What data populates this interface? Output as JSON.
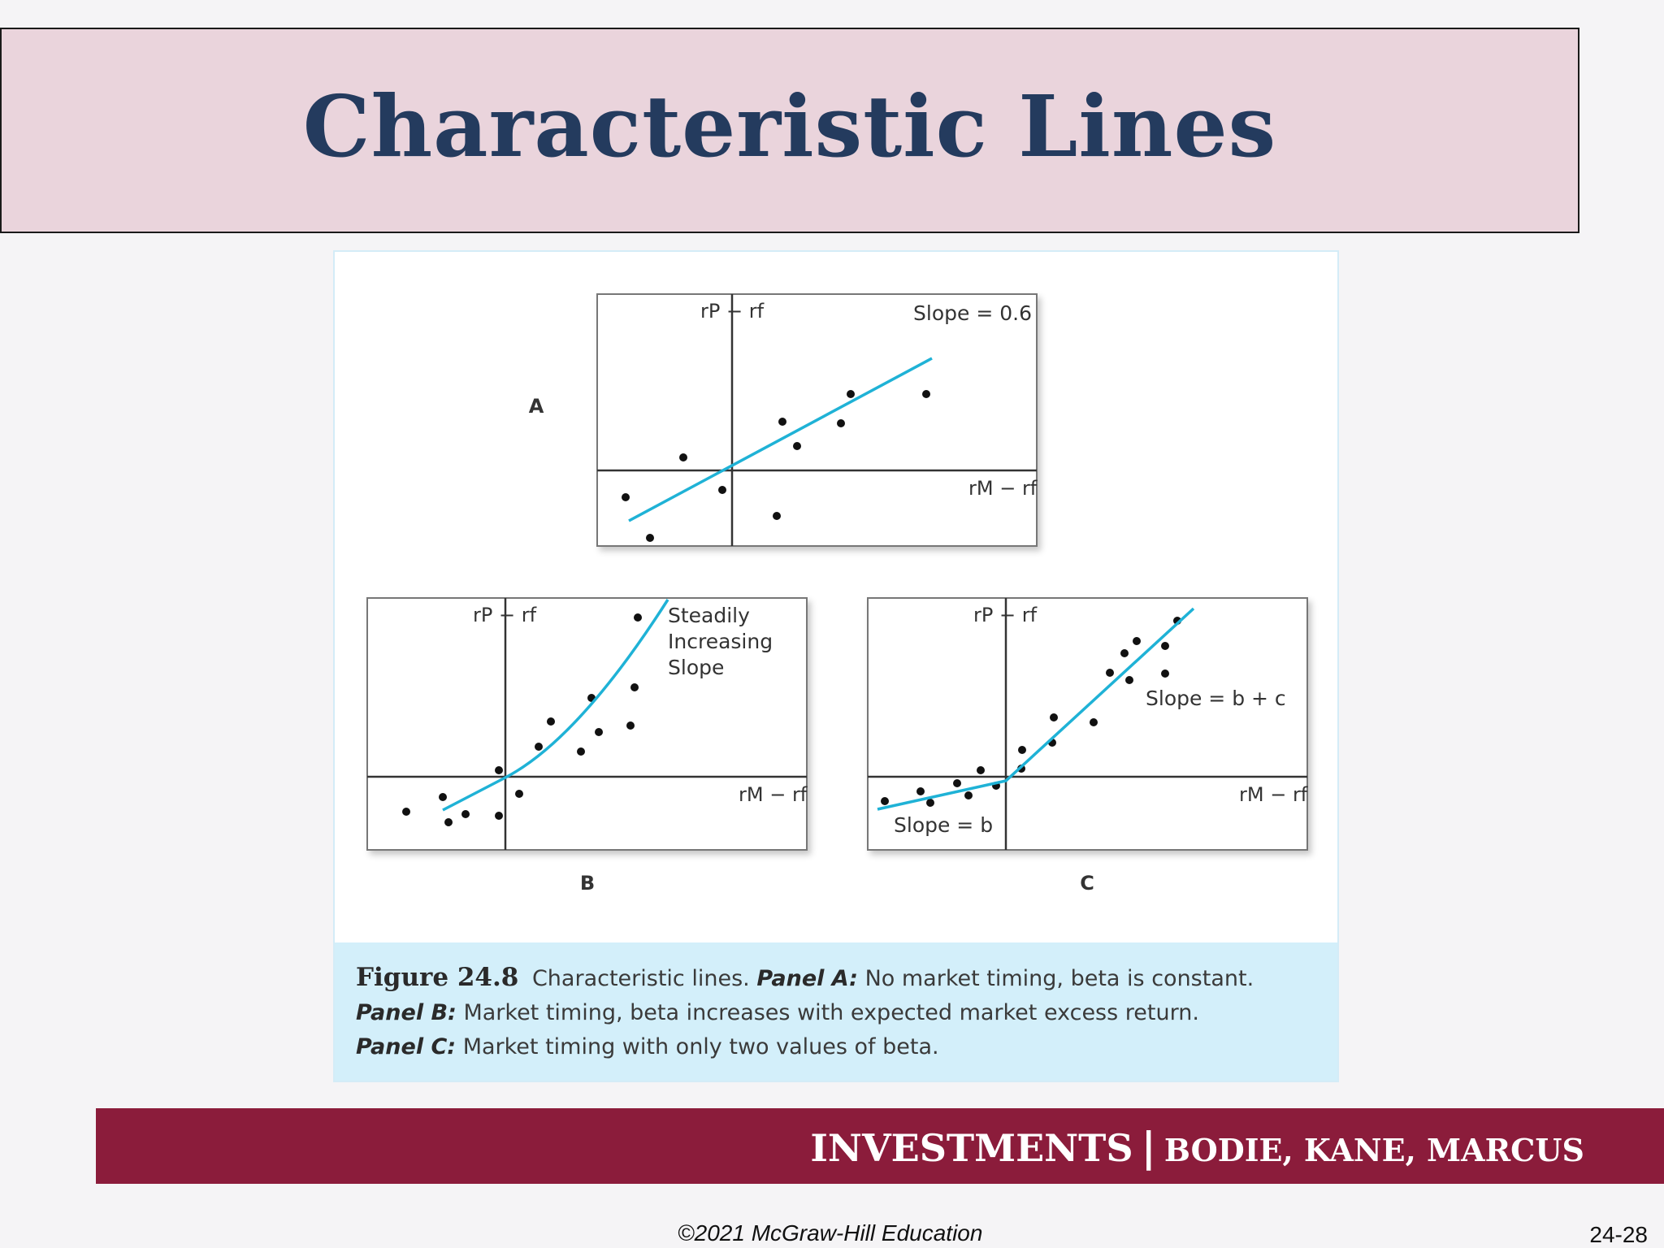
{
  "title": "Characteristic Lines",
  "figure": {
    "panels": [
      {
        "id": "A",
        "label": "A",
        "y_axis_label": "rP − rf",
        "x_axis_label": "rM − rf",
        "annotation": "Slope = 0.6"
      },
      {
        "id": "B",
        "label": "B",
        "y_axis_label": "rP − rf",
        "x_axis_label": "rM − rf",
        "annotation_lines": [
          "Steadily",
          "Increasing",
          "Slope"
        ]
      },
      {
        "id": "C",
        "label": "C",
        "y_axis_label": "rP − rf",
        "x_axis_label": "rM − rf",
        "annotation_upper": "Slope = b + c",
        "annotation_lower": "Slope = b"
      }
    ],
    "caption": {
      "figure_number": "Figure 24.8",
      "line1_text": "Characteristic lines.",
      "line1_bold": "Panel A:",
      "line1_rest": "No market timing, beta is constant.",
      "line2_bold": "Panel B:",
      "line2_rest": "Market timing, beta increases with expected market excess return.",
      "line3_bold": "Panel C:",
      "line3_rest": "Market timing with only two values of beta."
    }
  },
  "footer": {
    "main": "INVESTMENTS",
    "separator": "|",
    "authors": "BODIE, KANE, MARCUS"
  },
  "copyright": "©2021 McGraw-Hill Education",
  "page_number": "24-28",
  "colors": {
    "title_bg": "#ead4dc",
    "title_text": "#243b5e",
    "footer_bg": "#8b1c3b",
    "line": "#1fb2d6",
    "caption_bg": "#d3effa"
  }
}
